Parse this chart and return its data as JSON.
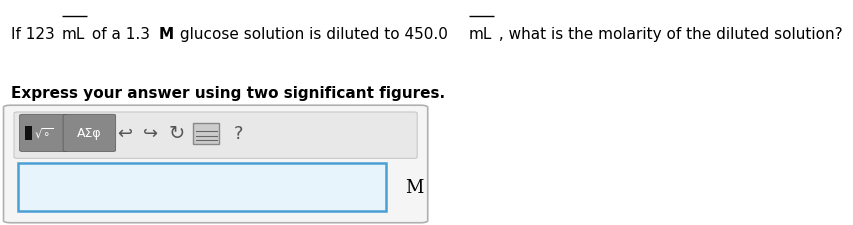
{
  "line1": "If 123 mL of a 1.3 M glucose solution is diluted to 450.0 mL , what is the molarity of the diluted solution?",
  "line1_segments": [
    {
      "text": "If 123 ",
      "style": "normal"
    },
    {
      "text": "mL",
      "style": "overline"
    },
    {
      "text": " of a 1.3 ",
      "style": "normal"
    },
    {
      "text": "M",
      "style": "bold"
    },
    {
      "text": " glucose solution is diluted to 450.0 ",
      "style": "normal"
    },
    {
      "text": "mL",
      "style": "overline"
    },
    {
      "text": " , what is the molarity of the diluted solution?",
      "style": "normal"
    }
  ],
  "line2": "Express your answer using two significant figures.",
  "toolbar_label": "■√õ  ΑΣφ",
  "unit_label": "M",
  "bg_color": "#ffffff",
  "box_outer_color": "#d0d0d0",
  "box_inner_color": "#f0f0f0",
  "input_border_color": "#4a9fd4",
  "input_bg_color": "#e8f4fb",
  "text_color": "#000000",
  "font_size_main": 11,
  "font_size_bold": 11
}
